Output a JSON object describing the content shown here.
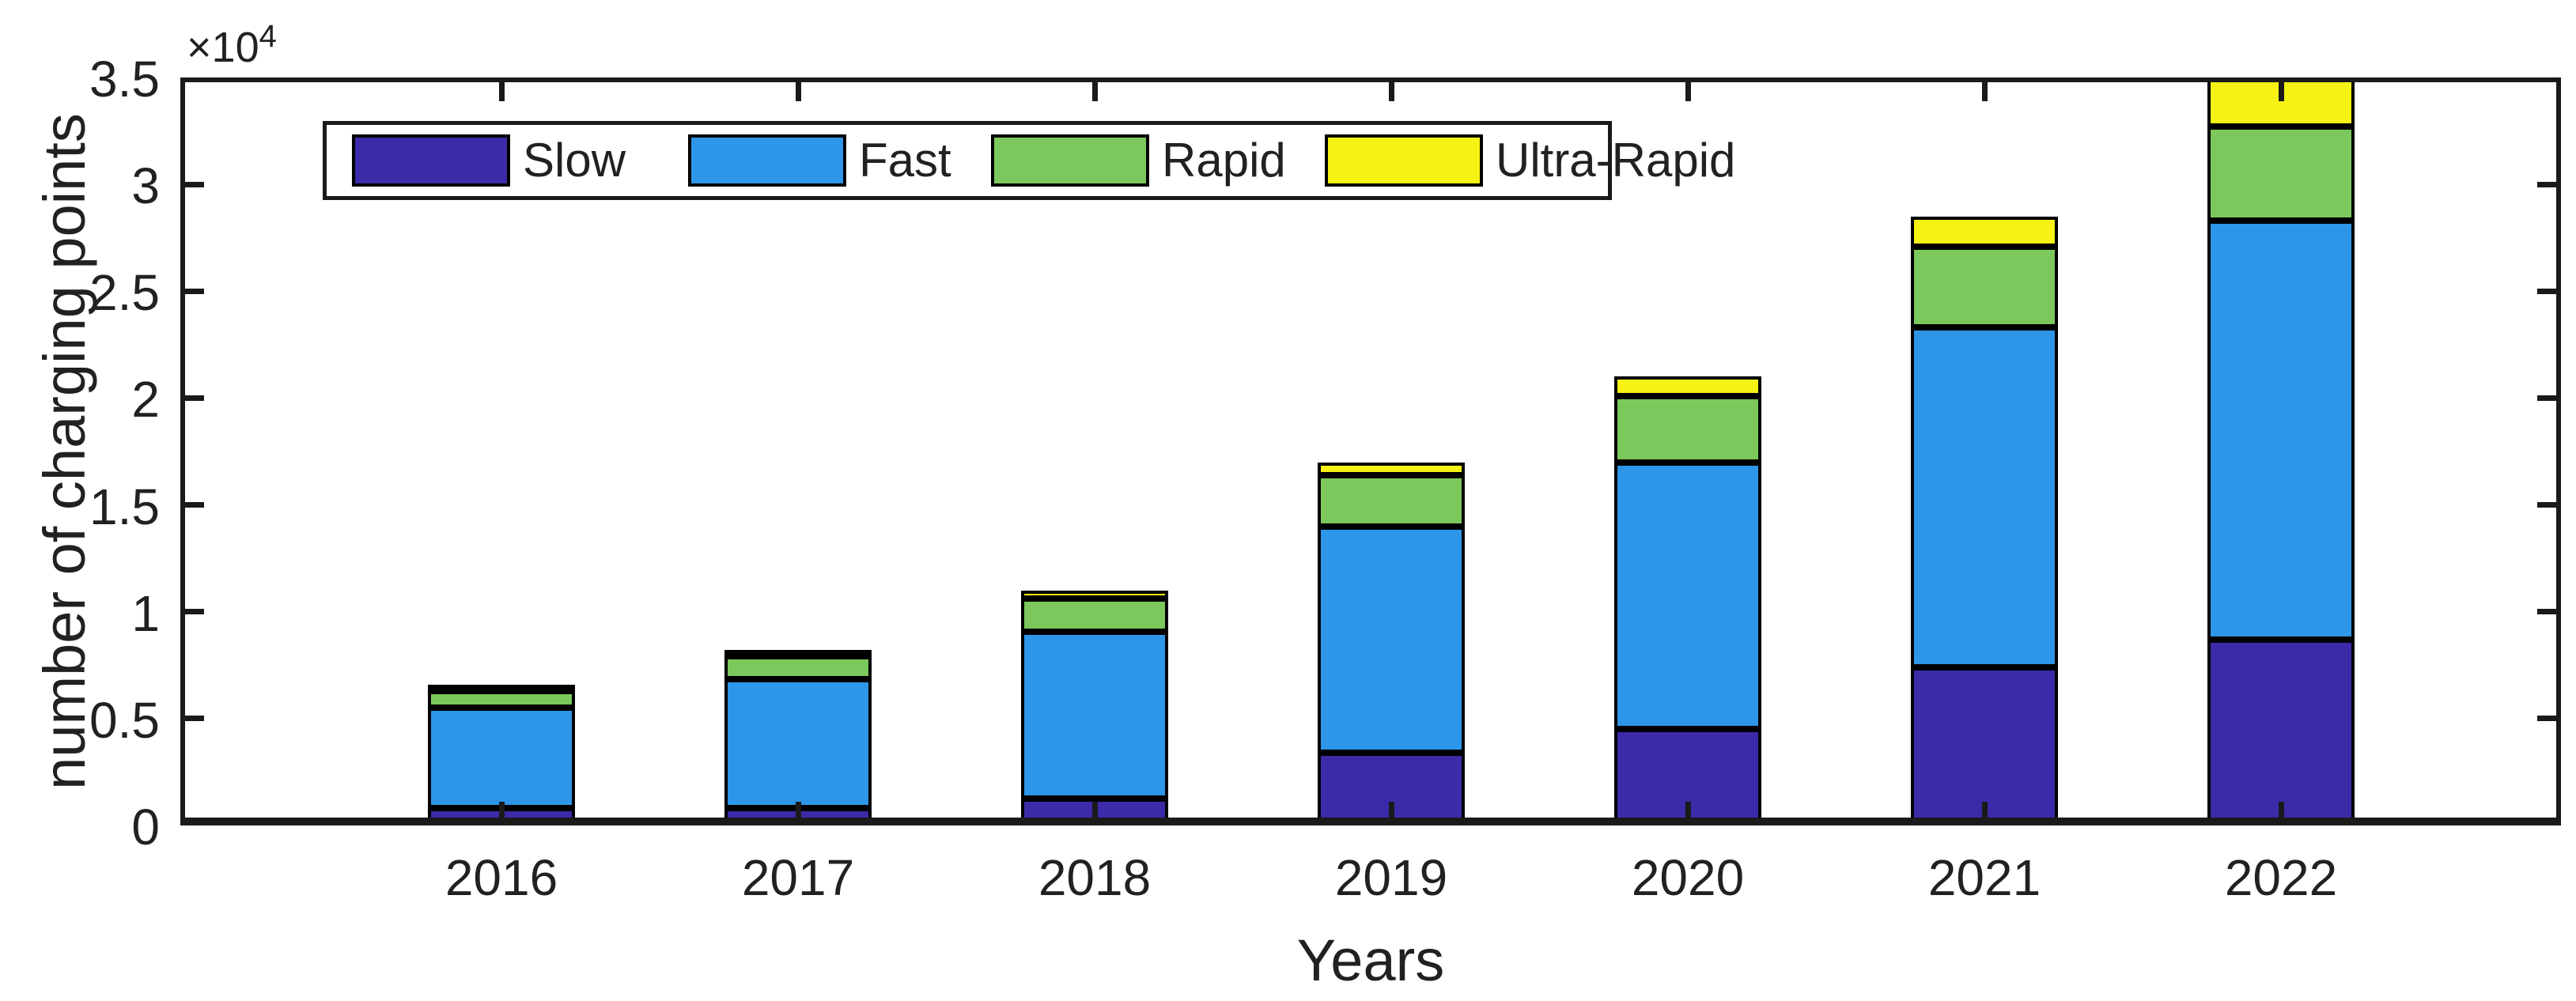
{
  "chart_data": {
    "type": "bar",
    "stacked": true,
    "title": "",
    "xlabel": "Years",
    "ylabel": "number of charging points",
    "y_exponent_base": "×10",
    "y_exponent_power": "4",
    "ylim": [
      0,
      35000
    ],
    "ytick_values": [
      0,
      5000,
      10000,
      15000,
      20000,
      25000,
      30000,
      35000
    ],
    "ytick_labels": [
      "0",
      "0.5",
      "1",
      "1.5",
      "2",
      "2.5",
      "3",
      "3.5"
    ],
    "categories": [
      "2016",
      "2017",
      "2018",
      "2019",
      "2020",
      "2021",
      "2022"
    ],
    "series": [
      {
        "name": "Slow",
        "color": "#3B2BA8",
        "values": [
          800,
          800,
          1250,
          3400,
          4500,
          7400,
          8700
        ]
      },
      {
        "name": "Fast",
        "color": "#2E96E8",
        "values": [
          4700,
          6050,
          7800,
          10600,
          12500,
          15900,
          19600
        ]
      },
      {
        "name": "Rapid",
        "color": "#7CC85C",
        "values": [
          800,
          1050,
          1550,
          2400,
          3100,
          3800,
          4400
        ]
      },
      {
        "name": "Ultra-Rapid",
        "color": "#F5F214",
        "values": [
          200,
          250,
          400,
          600,
          900,
          1400,
          2300
        ]
      }
    ],
    "totals_by_year": [
      6500,
      8150,
      11000,
      17000,
      21000,
      28500,
      35000
    ],
    "legend_entries": [
      "Slow",
      "Fast",
      "Rapid",
      "Ultra-Rapid"
    ],
    "legend_position": "inside-top-left",
    "grid": false,
    "bar_edge_color": "#000000",
    "axis_color": "#1a1a1a",
    "text_color": "#212121",
    "background_color": "#ffffff"
  }
}
